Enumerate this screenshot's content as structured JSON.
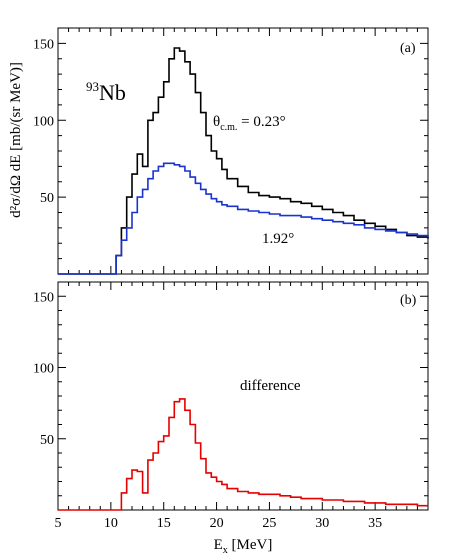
{
  "chart_data": [
    {
      "panel": "(a)",
      "type": "line",
      "step": true,
      "xlim": [
        5,
        40
      ],
      "ylim": [
        0,
        160
      ],
      "y_ticks": [
        50,
        100,
        150
      ],
      "ylabel": "d²σ/dΩ dE [mb/(sr MeV)]",
      "annotations": {
        "nucleus_sup": "93",
        "nucleus": "Nb",
        "angle1_sym": "θ",
        "angle1_sub": "c.m.",
        "angle1_val": " = 0.23°",
        "angle2": "1.92°"
      },
      "series": [
        {
          "color": "#000000",
          "x": [
            5.0,
            10.0,
            10.5,
            11.0,
            11.5,
            12.0,
            12.5,
            13.0,
            13.5,
            14.0,
            14.5,
            15.0,
            15.5,
            16.0,
            16.5,
            17.0,
            17.5,
            18.0,
            18.5,
            19.0,
            19.5,
            20.0,
            20.5,
            21.0,
            22.0,
            23.0,
            24.0,
            25.0,
            26.0,
            27.0,
            28.0,
            29.0,
            30.0,
            31.0,
            32.0,
            33.0,
            34.0,
            35.0,
            36.0,
            37.0,
            38.0,
            39.0,
            40.0
          ],
          "values": [
            0,
            0,
            12,
            30,
            50,
            65,
            78,
            70,
            100,
            105,
            115,
            125,
            140,
            147,
            145,
            138,
            130,
            118,
            105,
            90,
            80,
            75,
            68,
            62,
            57,
            53,
            51,
            50,
            49,
            47,
            46,
            44,
            42,
            40,
            38,
            35,
            33,
            31,
            29,
            27,
            25,
            24,
            23
          ]
        },
        {
          "color": "#1a33cc",
          "x": [
            5.0,
            10.0,
            10.5,
            11.0,
            11.5,
            12.0,
            12.5,
            13.0,
            13.5,
            14.0,
            14.5,
            15.0,
            15.5,
            16.0,
            16.5,
            17.0,
            17.5,
            18.0,
            18.5,
            19.0,
            19.5,
            20.0,
            20.5,
            21.0,
            22.0,
            23.0,
            24.0,
            25.0,
            26.0,
            27.0,
            28.0,
            29.0,
            30.0,
            31.0,
            32.0,
            33.0,
            34.0,
            35.0,
            36.0,
            37.0,
            38.0,
            39.0,
            40.0
          ],
          "values": [
            0,
            0,
            12,
            22,
            30,
            40,
            50,
            55,
            62,
            67,
            70,
            72,
            72,
            71,
            70,
            67,
            63,
            59,
            55,
            52,
            49,
            47,
            45,
            44,
            42,
            41,
            40,
            39,
            38,
            38,
            37,
            36,
            35,
            34,
            33,
            32,
            30,
            29,
            28,
            27,
            26,
            25,
            24
          ]
        }
      ]
    },
    {
      "panel": "(b)",
      "type": "line",
      "step": true,
      "xlim": [
        5,
        40
      ],
      "ylim": [
        0,
        160
      ],
      "y_ticks": [
        50,
        100,
        150
      ],
      "x_ticks": [
        5,
        10,
        15,
        20,
        25,
        30,
        35
      ],
      "xlabel_main": "E",
      "xlabel_sub": "x",
      "xlabel_unit": " [MeV]",
      "annotation": "difference",
      "series": [
        {
          "color": "#e60000",
          "x": [
            5.0,
            10.0,
            10.5,
            11.0,
            11.5,
            12.0,
            12.5,
            13.0,
            13.5,
            14.0,
            14.5,
            15.0,
            15.5,
            16.0,
            16.5,
            17.0,
            17.5,
            18.0,
            18.5,
            19.0,
            19.5,
            20.0,
            20.5,
            21.0,
            22.0,
            23.0,
            24.0,
            25.0,
            26.0,
            27.0,
            28.0,
            29.0,
            30.0,
            31.0,
            32.0,
            33.0,
            34.0,
            35.0,
            36.0,
            37.0,
            38.0,
            39.0,
            40.0
          ],
          "values": [
            0,
            0,
            0,
            12,
            22,
            28,
            27,
            12,
            35,
            40,
            48,
            52,
            65,
            76,
            78,
            70,
            60,
            47,
            36,
            26,
            23,
            20,
            18,
            15,
            13,
            12,
            11,
            11,
            10,
            9,
            8,
            8,
            7,
            7,
            6,
            6,
            5,
            5,
            4,
            4,
            4,
            3,
            3
          ]
        }
      ]
    }
  ]
}
